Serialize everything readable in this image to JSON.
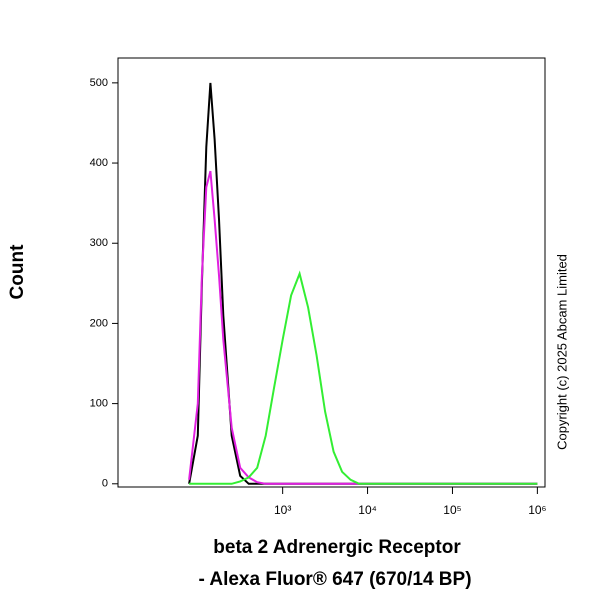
{
  "chart_data": {
    "type": "line",
    "x_label": [
      "beta 2 Adrenergic Receptor",
      "- Alexa Fluor® 647 (670/14 BP)"
    ],
    "y_label": "Count",
    "copyright": "Copyright (c) 2025 Abcam Limited",
    "x": [
      79,
      100,
      112,
      126,
      141,
      158,
      178,
      200,
      251,
      316,
      398,
      501,
      631,
      794,
      1000,
      1259,
      1585,
      1995,
      2512,
      3162,
      3981,
      5012,
      6310,
      7943,
      10000,
      15849,
      100000,
      1000000
    ],
    "series": [
      {
        "color": "#000000",
        "values": [
          0,
          60,
          250,
          420,
          500,
          430,
          330,
          210,
          60,
          10,
          0,
          0,
          0,
          0,
          0,
          0,
          0,
          0,
          0,
          0,
          0,
          0,
          0,
          0,
          0,
          0,
          0,
          0
        ]
      },
      {
        "color": "#e020e0",
        "values": [
          5,
          100,
          260,
          370,
          390,
          330,
          260,
          180,
          70,
          20,
          8,
          2,
          0,
          0,
          0,
          0,
          0,
          0,
          0,
          0,
          0,
          0,
          0,
          0,
          0,
          0,
          0,
          0
        ]
      },
      {
        "color": "#33ee33",
        "values": [
          0,
          0,
          0,
          0,
          0,
          0,
          0,
          0,
          0,
          3,
          8,
          20,
          60,
          120,
          180,
          235,
          262,
          220,
          160,
          90,
          40,
          15,
          5,
          0,
          0,
          0,
          0,
          0
        ]
      }
    ],
    "xscale": "log",
    "xlim": [
      11.5,
      1230000
    ],
    "xticks": [
      {
        "value": 1000,
        "label": "10³"
      },
      {
        "value": 10000,
        "label": "10⁴"
      },
      {
        "value": 100000,
        "label": "10⁵"
      },
      {
        "value": 1000000,
        "label": "10⁶"
      }
    ],
    "ylim": [
      -4,
      531
    ],
    "yticks": [
      0,
      100,
      200,
      300,
      400,
      500
    ]
  }
}
